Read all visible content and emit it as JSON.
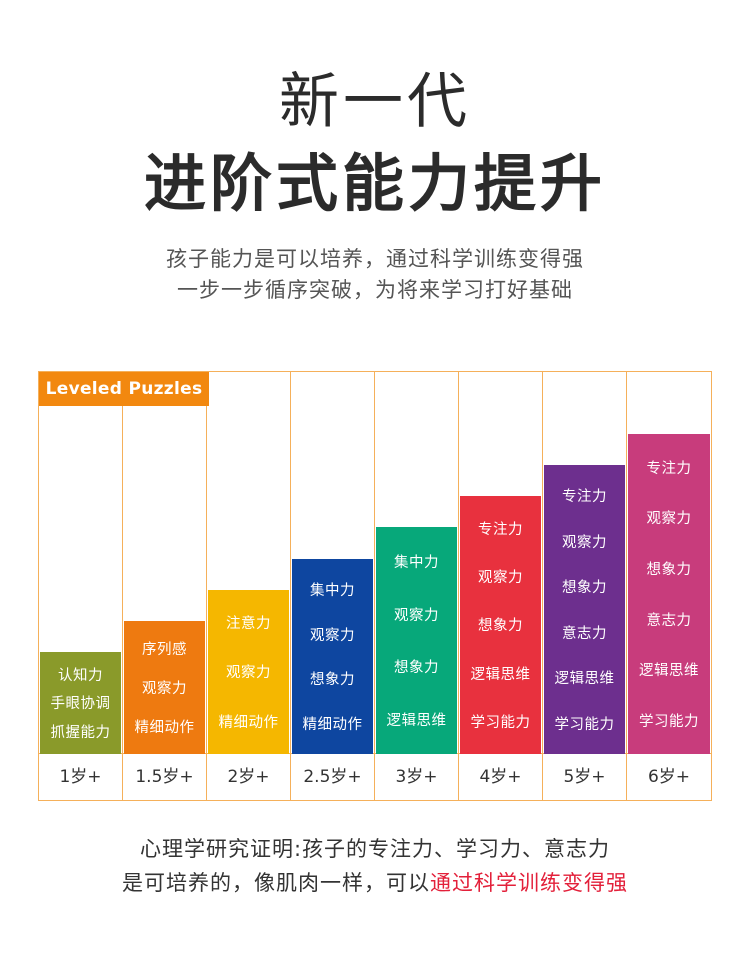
{
  "header": {
    "title_line1": "新一代",
    "title_line2": "进阶式能力提升",
    "subtitle_line1": "孩子能力是可以培养，通过科学训练变得强",
    "subtitle_line2": "一步一步循序突破，为将来学习打好基础"
  },
  "badge_label": "Leveled Puzzles",
  "colors": {
    "border": "#f5b05a",
    "badge": "#f2880f",
    "highlight": "#e3203a"
  },
  "chart_data": {
    "type": "bar",
    "categories": [
      "1岁+",
      "1.5岁+",
      "2岁+",
      "2.5岁+",
      "3岁+",
      "4岁+",
      "5岁+",
      "6岁+"
    ],
    "values": [
      1,
      2,
      3,
      4,
      5,
      6,
      7,
      8
    ],
    "bar_colors": [
      "#8a9a2a",
      "#ee7a10",
      "#f5b700",
      "#0e46a0",
      "#07a87a",
      "#e8313e",
      "#6d2f8e",
      "#c83c7c"
    ],
    "skills": [
      [
        "认知力",
        "手眼协调",
        "抓握能力"
      ],
      [
        "序列感",
        "观察力",
        "精细动作"
      ],
      [
        "注意力",
        "观察力",
        "精细动作"
      ],
      [
        "集中力",
        "观察力",
        "想象力",
        "精细动作"
      ],
      [
        "集中力",
        "观察力",
        "想象力",
        "逻辑思维"
      ],
      [
        "专注力",
        "观察力",
        "想象力",
        "逻辑思维",
        "学习能力"
      ],
      [
        "专注力",
        "观察力",
        "想象力",
        "意志力",
        "逻辑思维",
        "学习能力"
      ],
      [
        "专注力",
        "观察力",
        "想象力",
        "意志力",
        "逻辑思维",
        "学习能力"
      ]
    ]
  },
  "footer": {
    "line1": "心理学研究证明:孩子的专注力、学习力、意志力",
    "line2_plain": "是可培养的，像肌肉一样，可以",
    "line2_highlight": "通过科学训练变得强"
  }
}
